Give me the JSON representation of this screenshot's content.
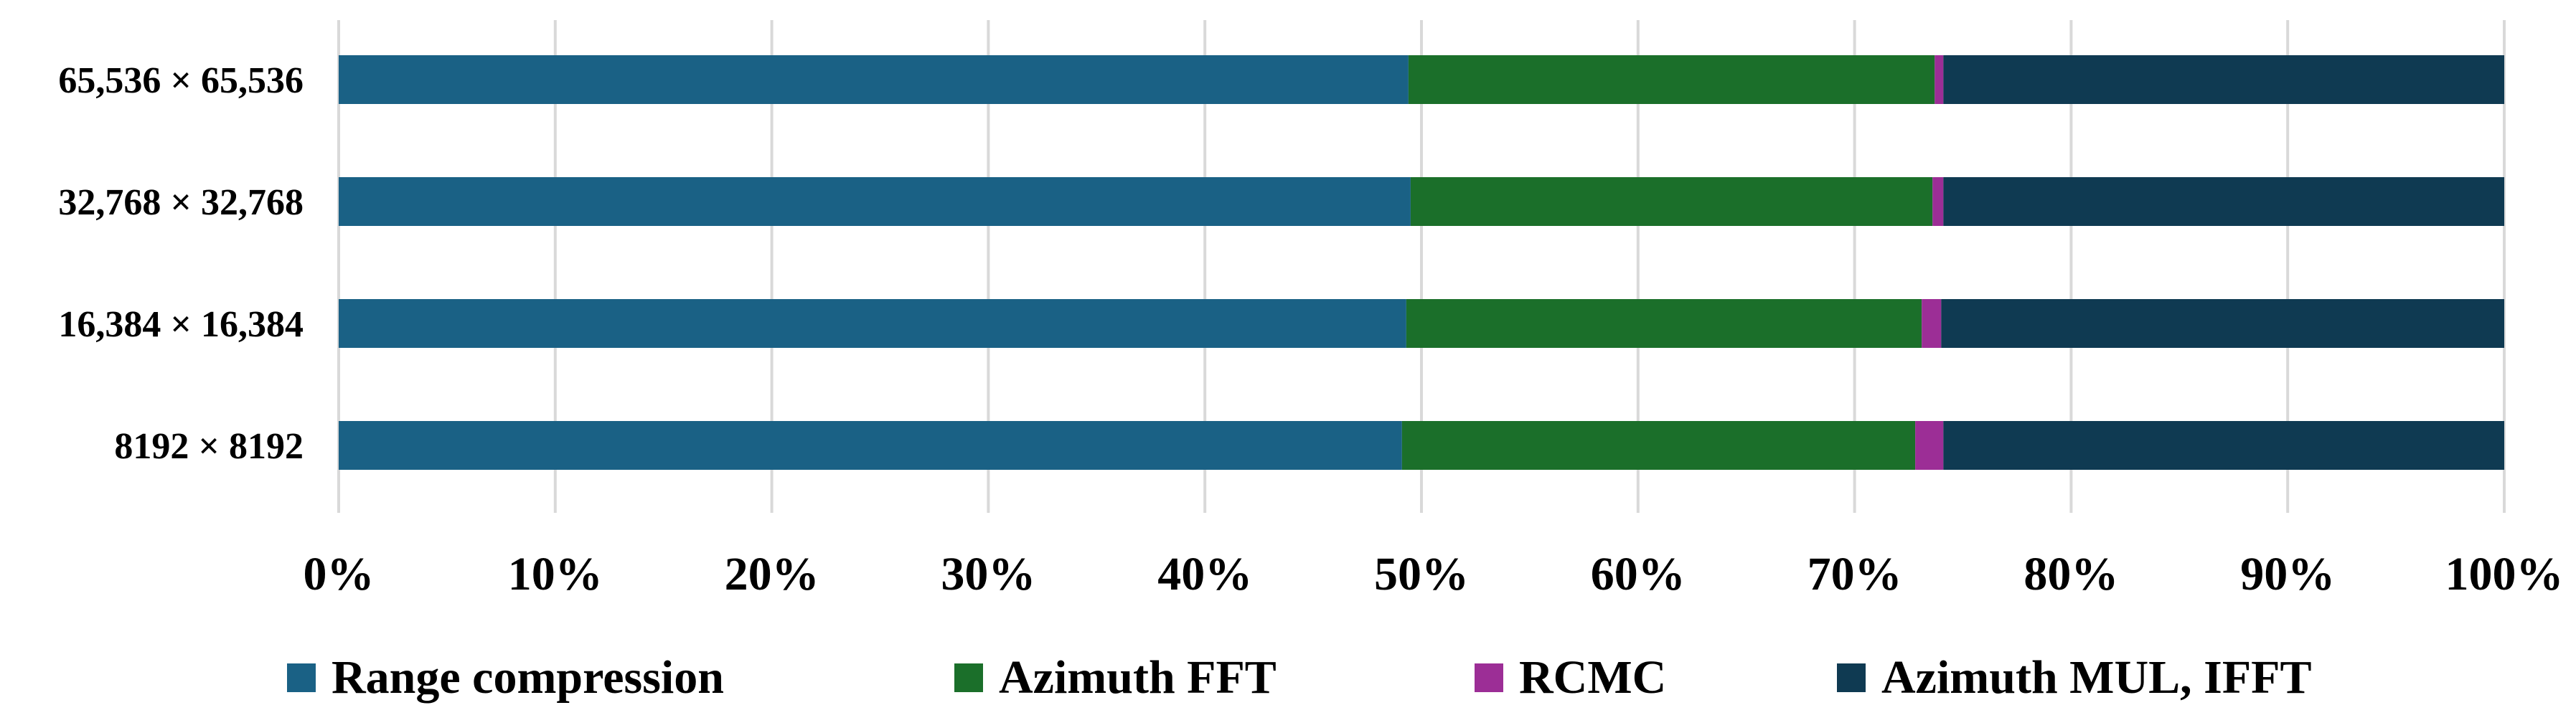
{
  "chart_data": {
    "type": "bar",
    "orientation": "horizontal",
    "stacked": "percent",
    "categories": [
      "65,536 × 65,536",
      "32,768 × 32,768",
      "16,384 × 16,384",
      "8192 × 8192"
    ],
    "series": [
      {
        "name": "Range compression",
        "color": "#1a6185",
        "values": [
          49.4,
          49.5,
          49.3,
          49.1
        ]
      },
      {
        "name": "Azimuth FFT",
        "color": "#1b6f2a",
        "values": [
          24.3,
          24.1,
          23.8,
          23.7
        ]
      },
      {
        "name": "RCMC",
        "color": "#9c2e96",
        "values": [
          0.4,
          0.5,
          0.9,
          1.3
        ]
      },
      {
        "name": "Azimuth MUL, IFFT",
        "color": "#0f3a52",
        "values": [
          25.9,
          25.9,
          26.0,
          25.9
        ]
      }
    ],
    "x_ticks": [
      "0%",
      "10%",
      "20%",
      "30%",
      "40%",
      "50%",
      "60%",
      "70%",
      "80%",
      "90%",
      "100%"
    ],
    "xlim": [
      0,
      100
    ],
    "grid": "vertical",
    "legend": "bottom"
  }
}
